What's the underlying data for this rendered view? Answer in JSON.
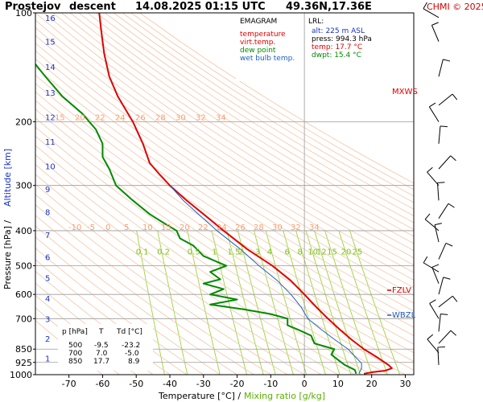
{
  "header": {
    "station": "Prostejov",
    "mode": "descent",
    "datetime": "14.08.2025 01:15 UTC",
    "position": "49.36N,17.36E",
    "credit": "CHMI © 2025"
  },
  "legend": {
    "title": "EMAGRAM",
    "items": [
      {
        "label": "temperature",
        "color": "#e00000"
      },
      {
        "label": "virt.temp.",
        "color": "#e00000"
      },
      {
        "label": "dew point",
        "color": "#008a00"
      },
      {
        "label": "wet bulb temp.",
        "color": "#2060c0"
      }
    ]
  },
  "lrl": {
    "title": "LRL:",
    "alt": "alt: 225 m ASL",
    "press": "press: 994.3 hPa",
    "temp": "temp: 17.7 °C",
    "dwpt": "dwpt: 15.4 °C",
    "alt_color": "#1a33c8",
    "press_color": "#000000",
    "temp_color": "#e00000",
    "dwpt_color": "#008a00"
  },
  "table": {
    "headers": [
      "p [hPa]",
      "T",
      "Td [°C]"
    ],
    "rows": [
      [
        "500",
        "-9.5",
        "-23.2"
      ],
      [
        "700",
        "7.0",
        "-5.0"
      ],
      [
        "850",
        "17.7",
        "8.9"
      ]
    ]
  },
  "markers": {
    "mxws": "MXWS",
    "fzlv": "FZLV",
    "wbzl": "WBZL"
  },
  "axes": {
    "xlabel_prefix": "Temperature [°C]  /",
    "xlabel_mix": "Mixing ratio [g/kg]",
    "ylabel_prefix": "Pressure [hPa]  /",
    "ylabel_alt": "Altitude [km]"
  },
  "chart_data": {
    "type": "line",
    "title": "Prostejov descent 14.08.2025 01:15 UTC 49.36N,17.36E",
    "xlabel": "Temperature [°C] / Mixing ratio [g/kg]",
    "ylabel": "Pressure [hPa] / Altitude [km]",
    "xlim": [
      -80,
      32
    ],
    "ylim": [
      1000,
      100
    ],
    "y_scale": "log",
    "x_ticks": [
      -70,
      -60,
      -50,
      -40,
      -30,
      -20,
      -10,
      0,
      10,
      20,
      30
    ],
    "y_ticks": [
      100,
      200,
      300,
      400,
      500,
      600,
      700,
      850,
      925,
      1000
    ],
    "altitude_ticks": [
      1,
      2,
      3,
      4,
      5,
      6,
      7,
      8,
      9,
      10,
      11,
      12,
      13,
      14,
      15,
      16
    ],
    "altitude_tick_pressures": [
      900,
      795,
      700,
      615,
      540,
      472,
      410,
      355,
      307,
      265,
      227,
      194,
      166,
      141,
      120,
      103
    ],
    "dry_adiabat_labels_upper": [
      "15",
      "20",
      "22",
      "24",
      "26",
      "28",
      "30",
      "32",
      "34"
    ],
    "dry_adiabat_labels_lower": [
      "-10",
      "-5",
      "0",
      "5",
      "10",
      "15",
      "20",
      "22",
      "24",
      "26",
      "28",
      "30",
      "32",
      "34"
    ],
    "mixing_ratio_labels": [
      "0.1",
      "0.2",
      "0.5",
      "1",
      "1.5",
      "2",
      "3",
      "4",
      "6",
      "8",
      "10",
      "12",
      "15",
      "20",
      "25"
    ],
    "mixing_ratio_values": [
      0.1,
      0.2,
      0.5,
      1,
      1.5,
      2,
      3,
      4,
      6,
      8,
      10,
      12,
      15,
      20,
      25
    ],
    "series": [
      {
        "name": "temperature",
        "color": "#e00000",
        "points": [
          [
            100,
            -61
          ],
          [
            110,
            -60.5
          ],
          [
            120,
            -60
          ],
          [
            130,
            -59.5
          ],
          [
            150,
            -58
          ],
          [
            170,
            -55.5
          ],
          [
            200,
            -51
          ],
          [
            230,
            -48
          ],
          [
            260,
            -46
          ],
          [
            280,
            -43
          ],
          [
            300,
            -40
          ],
          [
            330,
            -35
          ],
          [
            360,
            -30
          ],
          [
            400,
            -24
          ],
          [
            450,
            -17
          ],
          [
            500,
            -9.5
          ],
          [
            550,
            -4
          ],
          [
            600,
            0
          ],
          [
            650,
            3.5
          ],
          [
            700,
            7
          ],
          [
            750,
            10.5
          ],
          [
            800,
            14
          ],
          [
            850,
            17.7
          ],
          [
            900,
            22
          ],
          [
            940,
            25
          ],
          [
            960,
            26
          ],
          [
            975,
            24
          ],
          [
            985,
            20
          ],
          [
            994,
            17.7
          ]
        ]
      },
      {
        "name": "wet bulb temp.",
        "color": "#2060c0",
        "points": [
          [
            300,
            -40
          ],
          [
            330,
            -36
          ],
          [
            360,
            -31.5
          ],
          [
            400,
            -26
          ],
          [
            450,
            -19
          ],
          [
            500,
            -13.5
          ],
          [
            550,
            -8
          ],
          [
            600,
            -4
          ],
          [
            650,
            -1
          ],
          [
            700,
            1
          ],
          [
            750,
            5
          ],
          [
            800,
            9
          ],
          [
            850,
            13
          ],
          [
            900,
            15.5
          ],
          [
            930,
            17
          ],
          [
            960,
            17
          ],
          [
            994,
            16.2
          ]
        ]
      },
      {
        "name": "dew point",
        "color": "#008a00",
        "points": [
          [
            135,
            -81
          ],
          [
            150,
            -77
          ],
          [
            170,
            -72
          ],
          [
            190,
            -66
          ],
          [
            210,
            -62
          ],
          [
            230,
            -60
          ],
          [
            250,
            -60
          ],
          [
            270,
            -58
          ],
          [
            300,
            -56
          ],
          [
            330,
            -51
          ],
          [
            360,
            -46
          ],
          [
            380,
            -42
          ],
          [
            400,
            -38
          ],
          [
            420,
            -37
          ],
          [
            440,
            -33
          ],
          [
            470,
            -30
          ],
          [
            500,
            -23.2
          ],
          [
            520,
            -28
          ],
          [
            545,
            -25
          ],
          [
            560,
            -30
          ],
          [
            580,
            -24
          ],
          [
            600,
            -28
          ],
          [
            620,
            -20
          ],
          [
            640,
            -28
          ],
          [
            660,
            -18
          ],
          [
            680,
            -10
          ],
          [
            700,
            -5
          ],
          [
            730,
            -5
          ],
          [
            750,
            -2
          ],
          [
            780,
            2
          ],
          [
            820,
            3
          ],
          [
            850,
            8.9
          ],
          [
            880,
            8
          ],
          [
            910,
            10
          ],
          [
            940,
            12
          ],
          [
            970,
            15
          ],
          [
            994,
            15.4
          ]
        ]
      }
    ]
  }
}
